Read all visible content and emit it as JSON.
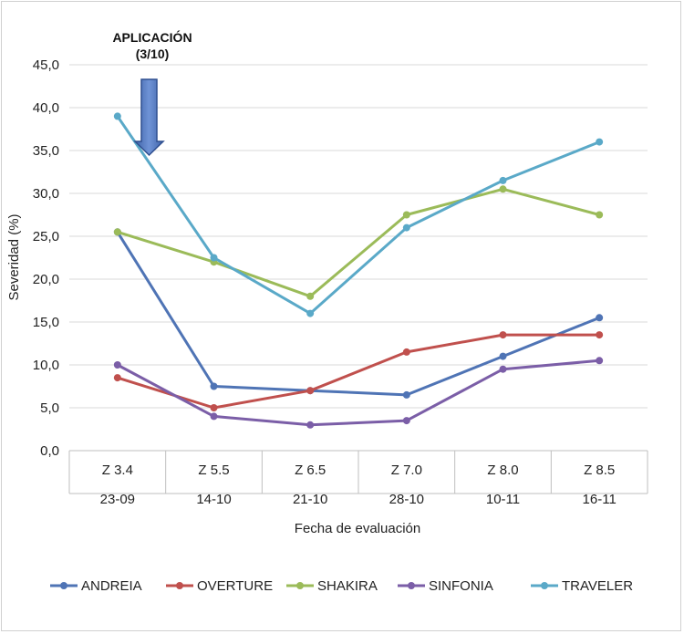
{
  "chart_data": {
    "type": "line",
    "ylabel": "Severidad (%)",
    "xlabel": "Fecha de evaluación",
    "ylim": [
      0,
      45
    ],
    "yticks": [
      "0,0",
      "5,0",
      "10,0",
      "15,0",
      "20,0",
      "25,0",
      "30,0",
      "35,0",
      "40,0",
      "45,0"
    ],
    "categories": [
      {
        "stage": "Z 3.4",
        "date": "23-09"
      },
      {
        "stage": "Z 5.5",
        "date": "14-10"
      },
      {
        "stage": "Z 6.5",
        "date": "21-10"
      },
      {
        "stage": "Z 7.0",
        "date": "28-10"
      },
      {
        "stage": "Z 8.0",
        "date": "10-11"
      },
      {
        "stage": "Z 8.5",
        "date": "16-11"
      }
    ],
    "series": [
      {
        "name": "ANDREIA",
        "color": "#4f74b5",
        "values": [
          25.5,
          7.5,
          7.0,
          6.5,
          11.0,
          15.5
        ]
      },
      {
        "name": "OVERTURE",
        "color": "#c0504d",
        "values": [
          8.5,
          5.0,
          7.0,
          11.5,
          13.5,
          13.5
        ]
      },
      {
        "name": "SHAKIRA",
        "color": "#9bbb59",
        "values": [
          25.5,
          22.0,
          18.0,
          27.5,
          30.5,
          27.5
        ]
      },
      {
        "name": "SINFONIA",
        "color": "#7b5ea7",
        "values": [
          10.0,
          4.0,
          3.0,
          3.5,
          9.5,
          10.5
        ]
      },
      {
        "name": "TRAVELER",
        "color": "#5aa9c8",
        "values": [
          39.0,
          22.5,
          16.0,
          26.0,
          31.5,
          36.0
        ]
      }
    ],
    "annotation": {
      "line1": "APLICACIÓN",
      "line2": "(3/10)",
      "category_index": 0
    },
    "grid": true,
    "legend_position": "bottom"
  }
}
